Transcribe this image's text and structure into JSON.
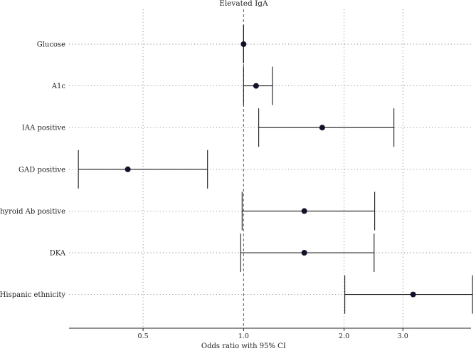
{
  "chart_data": {
    "type": "forest",
    "title": "Elevated IgA",
    "xlabel": "Odds ratio with 95% CI",
    "ylabel": "",
    "x_scale": "log",
    "xlim": [
      0.3,
      4.8
    ],
    "x_ticks": [
      0.5,
      1.0,
      2.0,
      3.0
    ],
    "x_tick_labels": [
      "0.5",
      "1.0",
      "2.0",
      "3.0"
    ],
    "reference_line": 1.0,
    "grid": true,
    "rows": [
      {
        "label": "Glucose",
        "or": 1.0,
        "lower": 1.0,
        "upper": 1.0
      },
      {
        "label": "A1c",
        "or": 1.09,
        "lower": 1.0,
        "upper": 1.22
      },
      {
        "label": "IAA positive",
        "or": 1.72,
        "lower": 1.11,
        "upper": 2.82
      },
      {
        "label": "GAD positive",
        "or": 0.45,
        "lower": 0.32,
        "upper": 0.78
      },
      {
        "label": "Thyroid Ab positive",
        "or": 1.52,
        "lower": 0.99,
        "upper": 2.47
      },
      {
        "label": "DKA",
        "or": 1.52,
        "lower": 0.98,
        "upper": 2.46
      },
      {
        "label": "Hispanic ethnicity",
        "or": 3.22,
        "lower": 2.01,
        "upper": 4.85
      }
    ],
    "colors": {
      "point": "#12122b",
      "line": "#1a1a1a",
      "grid": "#8a8a8a"
    }
  }
}
